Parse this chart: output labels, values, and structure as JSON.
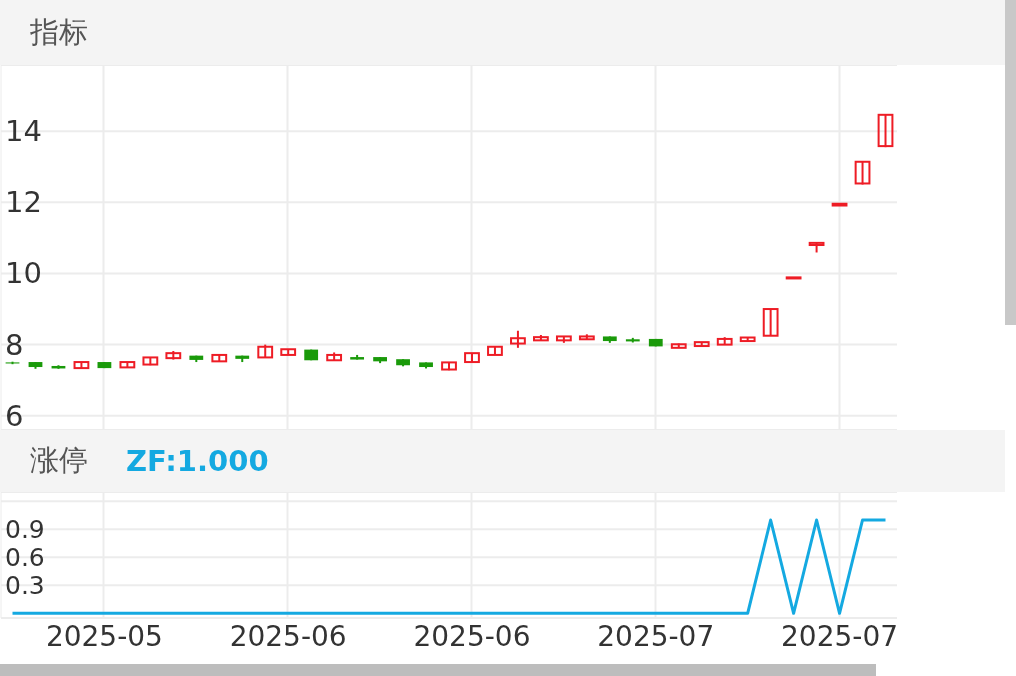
{
  "chart_data": [
    {
      "type": "candlestick",
      "title": "指标",
      "categories": [
        null,
        null,
        null,
        null,
        "2025-05",
        null,
        null,
        null,
        null,
        null,
        null,
        null,
        "2025-06",
        null,
        null,
        null,
        null,
        null,
        null,
        null,
        "2025-06",
        null,
        null,
        null,
        null,
        null,
        null,
        null,
        "2025-07",
        null,
        null,
        null,
        null,
        null,
        null,
        null,
        "2025-07",
        null,
        null
      ],
      "ohlc": [
        [
          7.5,
          7.52,
          7.45,
          7.47
        ],
        [
          7.51,
          7.51,
          7.32,
          7.37
        ],
        [
          7.4,
          7.42,
          7.32,
          7.33
        ],
        [
          7.34,
          7.51,
          7.34,
          7.51
        ],
        [
          7.51,
          7.51,
          7.34,
          7.34
        ],
        [
          7.36,
          7.51,
          7.36,
          7.51
        ],
        [
          7.44,
          7.64,
          7.42,
          7.64
        ],
        [
          7.62,
          7.82,
          7.58,
          7.76
        ],
        [
          7.69,
          7.69,
          7.51,
          7.57
        ],
        [
          7.53,
          7.71,
          7.53,
          7.71
        ],
        [
          7.69,
          7.69,
          7.51,
          7.6
        ],
        [
          7.64,
          8.0,
          7.64,
          7.94
        ],
        [
          7.71,
          7.87,
          7.71,
          7.87
        ],
        [
          7.86,
          7.86,
          7.56,
          7.56
        ],
        [
          7.56,
          7.78,
          7.56,
          7.71
        ],
        [
          7.65,
          7.71,
          7.58,
          7.58
        ],
        [
          7.65,
          7.65,
          7.48,
          7.53
        ],
        [
          7.59,
          7.59,
          7.39,
          7.42
        ],
        [
          7.5,
          7.5,
          7.33,
          7.37
        ],
        [
          7.3,
          7.5,
          7.28,
          7.5
        ],
        [
          7.51,
          7.76,
          7.51,
          7.76
        ],
        [
          7.71,
          7.94,
          7.71,
          7.94
        ],
        [
          8.03,
          8.39,
          7.91,
          8.18
        ],
        [
          8.12,
          8.27,
          8.12,
          8.21
        ],
        [
          8.12,
          8.23,
          8.05,
          8.23
        ],
        [
          8.15,
          8.29,
          8.15,
          8.23
        ],
        [
          8.23,
          8.23,
          8.05,
          8.1
        ],
        [
          8.15,
          8.19,
          8.06,
          8.09
        ],
        [
          8.16,
          8.16,
          7.95,
          7.95
        ],
        [
          7.91,
          8.03,
          7.91,
          8.01
        ],
        [
          7.96,
          8.07,
          7.96,
          8.07
        ],
        [
          8.0,
          8.21,
          8.0,
          8.16
        ],
        [
          8.1,
          8.2,
          8.1,
          8.2
        ],
        [
          8.25,
          9.0,
          8.25,
          9.0
        ],
        [
          9.86,
          9.89,
          9.86,
          9.89
        ],
        [
          10.8,
          10.86,
          10.59,
          10.86
        ],
        [
          11.91,
          11.96,
          11.91,
          11.96
        ],
        [
          12.53,
          13.14,
          12.5,
          13.14
        ],
        [
          13.58,
          14.46,
          13.55,
          14.46
        ]
      ],
      "colors": [
        "#1a9a0a",
        "#1a9a0a",
        "#1a9a0a",
        "#ee1c25",
        "#1a9a0a",
        "#ee1c25",
        "#ee1c25",
        "#ee1c25",
        "#1a9a0a",
        "#ee1c25",
        "#1a9a0a",
        "#ee1c25",
        "#ee1c25",
        "#1a9a0a",
        "#ee1c25",
        "#1a9a0a",
        "#1a9a0a",
        "#1a9a0a",
        "#1a9a0a",
        "#ee1c25",
        "#ee1c25",
        "#ee1c25",
        "#ee1c25",
        "#ee1c25",
        "#ee1c25",
        "#ee1c25",
        "#1a9a0a",
        "#1a9a0a",
        "#1a9a0a",
        "#ee1c25",
        "#ee1c25",
        "#ee1c25",
        "#ee1c25",
        "#ee1c25",
        "#ee1c25",
        "#ee1c25",
        "#ee1c25",
        "#ee1c25",
        "#ee1c25"
      ],
      "ylim": [
        5.6,
        15.86
      ],
      "yticks": [
        6,
        8,
        10,
        12,
        14
      ],
      "grid": true,
      "tick_labels": "y"
    },
    {
      "type": "line",
      "title": "涨停",
      "categories": [
        null,
        null,
        null,
        null,
        "2025-05",
        null,
        null,
        null,
        null,
        null,
        null,
        null,
        "2025-06",
        null,
        null,
        null,
        null,
        null,
        null,
        null,
        "2025-06",
        null,
        null,
        null,
        null,
        null,
        null,
        null,
        "2025-07",
        null,
        null,
        null,
        null,
        null,
        null,
        null,
        "2025-07",
        null,
        null
      ],
      "series": [
        {
          "name": "ZF:1.000",
          "color": "#14a9e1",
          "values": [
            0,
            0,
            0,
            0,
            0,
            0,
            0,
            0,
            0,
            0,
            0,
            0,
            0,
            0,
            0,
            0,
            0,
            0,
            0,
            0,
            0,
            0,
            0,
            0,
            0,
            0,
            0,
            0,
            0,
            0,
            0,
            0,
            0,
            1,
            0,
            1,
            0,
            1,
            1
          ]
        }
      ],
      "ylim": [
        -0.05,
        1.3
      ],
      "yticks": [
        0.3,
        0.6,
        0.9,
        {
          "value": 1.2,
          "label": null
        }
      ],
      "grid": true,
      "legend": "top left"
    }
  ]
}
